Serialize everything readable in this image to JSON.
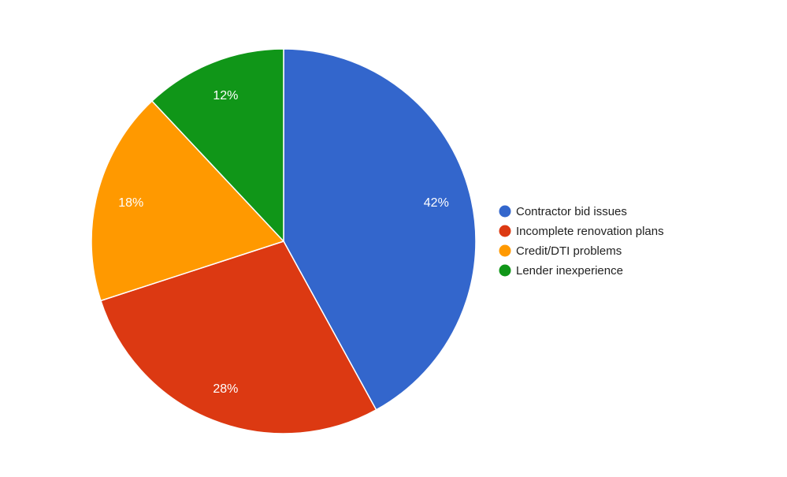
{
  "chart_data": {
    "type": "pie",
    "categories": [
      "Contractor bid issues",
      "Incomplete renovation plans",
      "Credit/DTI problems",
      "Lender inexperience"
    ],
    "values": [
      42,
      28,
      18,
      12
    ],
    "labels": [
      "42%",
      "28%",
      "18%",
      "12%"
    ],
    "colors": [
      "#3366cc",
      "#dc3912",
      "#ff9900",
      "#109618"
    ],
    "legend": "right"
  }
}
